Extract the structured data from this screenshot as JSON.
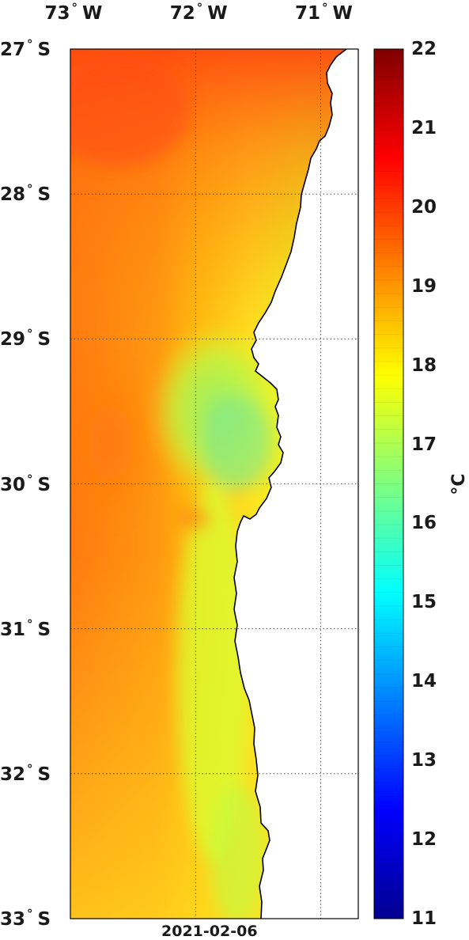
{
  "date": "2021-02-06",
  "variable_units": "°C",
  "map": {
    "lon_range": [
      -73.0,
      -70.7
    ],
    "lat_range": [
      -33.0,
      -27.0
    ],
    "grid": true,
    "land_color": "#ffffff",
    "lon_ticks": [
      {
        "value": -73,
        "deg": "73",
        "hemi": "W"
      },
      {
        "value": -72,
        "deg": "72",
        "hemi": "W"
      },
      {
        "value": -71,
        "deg": "71",
        "hemi": "W"
      }
    ],
    "lat_ticks": [
      {
        "value": -27,
        "deg": "27",
        "hemi": "S"
      },
      {
        "value": -28,
        "deg": "28",
        "hemi": "S"
      },
      {
        "value": -29,
        "deg": "29",
        "hemi": "S"
      },
      {
        "value": -30,
        "deg": "30",
        "hemi": "S"
      },
      {
        "value": -31,
        "deg": "31",
        "hemi": "S"
      },
      {
        "value": -32,
        "deg": "32",
        "hemi": "S"
      },
      {
        "value": -33,
        "deg": "33",
        "hemi": "S"
      }
    ]
  },
  "colorbar": {
    "min": 11,
    "max": 22,
    "colormap": "jet",
    "ticks": [
      "22",
      "21",
      "20",
      "19",
      "18",
      "17",
      "16",
      "15",
      "14",
      "13",
      "12",
      "11"
    ]
  }
}
